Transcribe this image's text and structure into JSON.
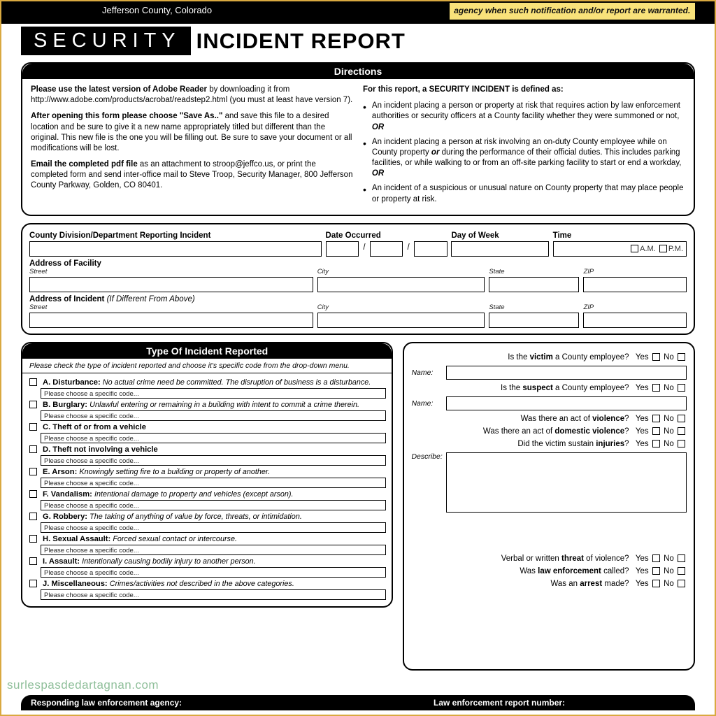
{
  "colors": {
    "accent_yellow": "#f9e27a",
    "border_amber": "#d9a940",
    "black": "#000000",
    "white": "#ffffff",
    "watermark": "#8fbf9a"
  },
  "header": {
    "county_line": "Jefferson County, Colorado",
    "yellow_note": "agency when such notification and/or report are warranted.",
    "security": "SECURITY",
    "incident": "INCIDENT REPORT"
  },
  "directions": {
    "title": "Directions",
    "left": {
      "p1_b": "Please use the latest version of Adobe Reader",
      "p1_t": " by downloading it from http://www.adobe.com/products/acrobat/readstep2.html (you must at least have version 7).",
      "p2_b": "After opening this form please choose \"Save As..\"",
      "p2_t": " and save this file to a desired location and be sure to give it a new name appropriately titled but different than the original. This new file is the one you will be filling out. Be sure to save your document or all modifications will be lost.",
      "p3_b": "Email the completed pdf file",
      "p3_t": " as an attachment to stroop@jeffco.us, or print the completed form and send inter-office mail to Steve Troop, Security Manager, 800 Jefferson County Parkway, Golden, CO 80401."
    },
    "right": {
      "heading": "For this report, a SECURITY INCIDENT is defined as:",
      "b1": "An incident placing a person or property at risk that requires action by law enforcement authorities or security officers at a County facility whether they were summoned or not, ",
      "b1_or": "OR",
      "b2": "An incident placing a person at risk involving an on-duty County employee while on County property ",
      "b2_or": "or",
      "b2b": " during the performance of their official duties. This includes parking facilities, or while walking to or from an off-site parking facility to start or end a workday, ",
      "b2_or2": "OR",
      "b3": "An incident of a suspicious or unusual nature on County property that may place people or property at risk."
    }
  },
  "fields": {
    "division": "County Division/Department Reporting Incident",
    "date": "Date Occurred",
    "dow": "Day of Week",
    "time": "Time",
    "am": "A.M.",
    "pm": "P.M.",
    "addr_facility": "Address of Facility",
    "addr_incident": "Address of Incident",
    "addr_incident_note": "(If Different From Above)",
    "street": "Street",
    "city": "City",
    "state": "State",
    "zip": "ZIP",
    "slash": "/"
  },
  "types": {
    "title": "Type Of Incident Reported",
    "instruction": "Please check the type of incident reported and choose it's specific code from the drop-down menu.",
    "placeholder": "Please choose a specific code...",
    "items": [
      {
        "code": "A.",
        "name": "Disturbance:",
        "desc": "No actual crime need be committed. The disruption of business is a disturbance."
      },
      {
        "code": "B.",
        "name": "Burglary:",
        "desc": "Unlawful entering or remaining in a building with intent to commit a crime therein."
      },
      {
        "code": "C.",
        "name": "Theft of or from a vehicle",
        "desc": ""
      },
      {
        "code": "D.",
        "name": "Theft not involving a vehicle",
        "desc": ""
      },
      {
        "code": "E.",
        "name": "Arson:",
        "desc": "Knowingly setting fire to a building or property of another."
      },
      {
        "code": "F.",
        "name": "Vandalism:",
        "desc": "Intentional damage to property and vehicles (except arson)."
      },
      {
        "code": "G.",
        "name": "Robbery:",
        "desc": "The taking of anything of value by force, threats, or intimidation."
      },
      {
        "code": "H.",
        "name": "Sexual Assault:",
        "desc": "Forced sexual contact or intercourse."
      },
      {
        "code": "I.",
        "name": "Assault:",
        "desc": "Intentionally causing bodily injury to another person."
      },
      {
        "code": "J.",
        "name": "Miscellaneous:",
        "desc": "Crimes/activities not described in the above categories."
      }
    ]
  },
  "right_q": {
    "q1_a": "Is the ",
    "q1_b": "victim",
    "q1_c": " a County employee?",
    "q2_a": "Is the ",
    "q2_b": "suspect",
    "q2_c": " a County employee?",
    "name": "Name:",
    "q3_a": "Was there an act of ",
    "q3_b": "violence",
    "q3_c": "?",
    "q4_a": "Was there an act of ",
    "q4_b": "domestic violence",
    "q4_c": "?",
    "q5_a": "Did the victim sustain ",
    "q5_b": "injuries",
    "q5_c": "?",
    "describe": "Describe:",
    "q6_a": "Verbal or written ",
    "q6_b": "threat",
    "q6_c": " of violence?",
    "q7_a": "Was ",
    "q7_b": "law enforcement",
    "q7_c": " called?",
    "q8_a": "Was an ",
    "q8_b": "arrest",
    "q8_c": " made?",
    "yes": "Yes",
    "no": "No"
  },
  "bottom": {
    "left": "Responding law enforcement agency:",
    "right": "Law enforcement report number:"
  },
  "watermark": "surlespasdedartagnan.com"
}
